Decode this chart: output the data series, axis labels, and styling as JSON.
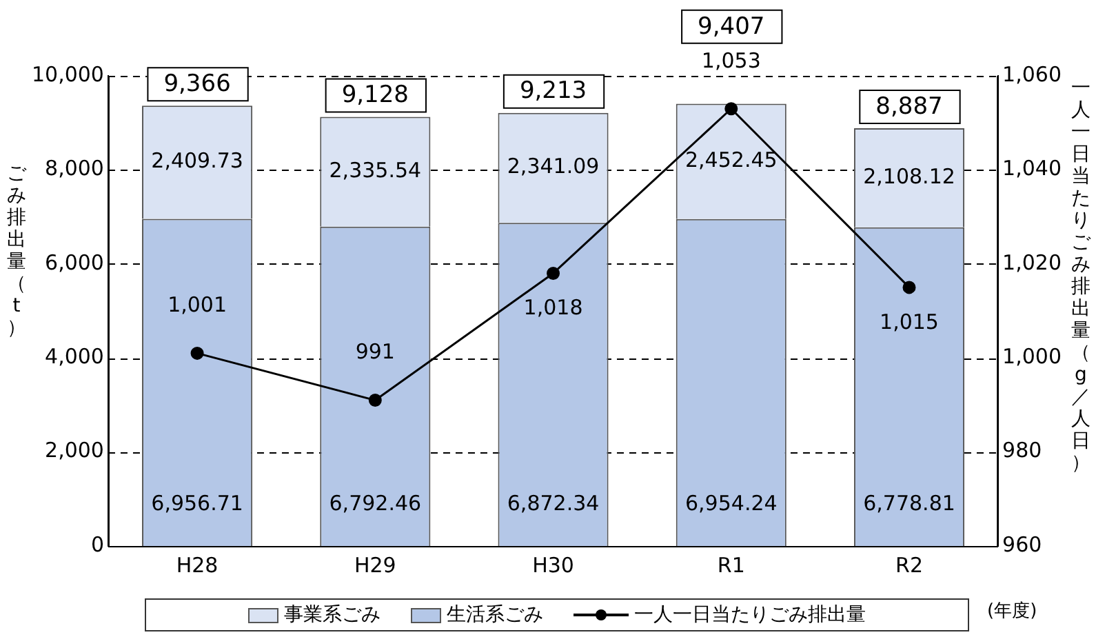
{
  "chart_data": {
    "type": "bar",
    "stacked": true,
    "categories": [
      "H28",
      "H29",
      "H30",
      "R1",
      "R2"
    ],
    "ylabel": "ごみ排出量（t）",
    "y2label": "一人一日当たりごみ排出量（g／人日）",
    "ylim": [
      0,
      10000
    ],
    "yticks": [
      0,
      {
        "value": 2000,
        "label": "2,000"
      },
      {
        "value": 4000,
        "label": "4,000"
      },
      {
        "value": 6000,
        "label": "6,000"
      },
      {
        "value": 8000,
        "label": "8,000"
      },
      {
        "value": 10000,
        "label": "10,000"
      }
    ],
    "y2lim": [
      960,
      1060
    ],
    "y2ticks": [
      {
        "value": 960,
        "label": "960"
      },
      {
        "value": 980,
        "label": "980"
      },
      {
        "value": 1000,
        "label": "1,000"
      },
      {
        "value": 1020,
        "label": "1,020"
      },
      {
        "value": 1040,
        "label": "1,040"
      },
      {
        "value": 1060,
        "label": "1,060"
      }
    ],
    "grid": "y",
    "legend": "bottom",
    "marker": "circle",
    "series": [
      {
        "name": "生活系ごみ",
        "color": "#b4c7e7",
        "values": [
          6956.71,
          6792.46,
          6872.34,
          6954.24,
          6778.81
        ],
        "value_labels": [
          "6,956.71",
          "6,792.46",
          "6,872.34",
          "6,954.24",
          "6,778.81"
        ]
      },
      {
        "name": "事業系ごみ",
        "color": "#dae3f3",
        "values": [
          2409.73,
          2335.54,
          2341.09,
          2452.45,
          2108.12
        ],
        "value_labels": [
          "2,409.73",
          "2,335.54",
          "2,341.09",
          "2,452.45",
          "2,108.12"
        ]
      },
      {
        "name": "一人一日当たりごみ排出量",
        "type": "line",
        "axis": "y2",
        "color": "#000000",
        "values": [
          1001,
          991,
          1018,
          1053,
          1015
        ],
        "value_labels": [
          "1,001",
          "991",
          "1,018",
          "1,053",
          "1,015"
        ]
      }
    ],
    "totals": [
      "9,366",
      "9,128",
      "9,213",
      "9,407",
      "8,887"
    ],
    "annotations": [
      "(年度)"
    ]
  }
}
